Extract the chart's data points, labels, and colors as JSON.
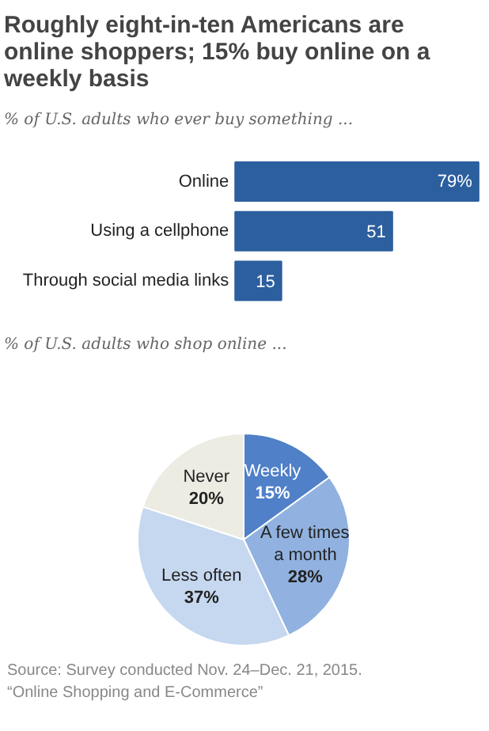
{
  "chart_data": [
    {
      "type": "bar",
      "title": "Roughly eight-in-ten Americans are online shoppers; 15% buy online on a weekly basis",
      "subtitle": "% of U.S. adults who ever buy something ...",
      "orientation": "horizontal",
      "categories": [
        "Online",
        "Using a cellphone",
        "Through social media links"
      ],
      "values": [
        79,
        51,
        15
      ],
      "color": "#2c5f9e",
      "value_labels": [
        "79%",
        "51",
        "15"
      ]
    },
    {
      "type": "pie",
      "subtitle": "% of U.S. adults who shop online ...",
      "categories": [
        "Weekly",
        "A few times a month",
        "Less often",
        "Never"
      ],
      "values": [
        15,
        28,
        37,
        20
      ],
      "colors": [
        "#4f80c8",
        "#91b2e0",
        "#c6d8ef",
        "#edece3"
      ],
      "value_labels": [
        "15%",
        "28%",
        "37%",
        "20%"
      ],
      "annotations": [
        "Source: Survey conducted Nov. 24–Dec. 21, 2015.",
        "“Online Shopping and E-Commerce”"
      ]
    }
  ]
}
